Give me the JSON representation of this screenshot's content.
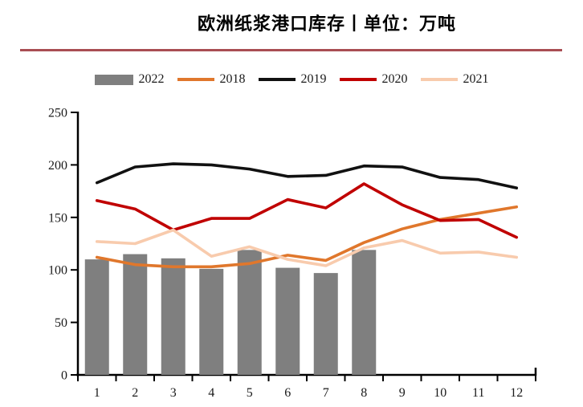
{
  "header": {
    "title": "欧洲纸浆港口库存丨单位：万吨"
  },
  "colors": {
    "separator": "#A94E53",
    "axis": "#000000",
    "tick_text": "#1a1a1a",
    "bar_2022": "#7f7f7f",
    "line_2018": "#E0772C",
    "line_2019": "#111111",
    "line_2020": "#C00000",
    "line_2021": "#F8CBAD"
  },
  "chart_data": {
    "type": "bar",
    "combo": true,
    "title": "欧洲纸浆港口库存丨单位：万吨",
    "xlabel": "",
    "ylabel": "",
    "categories": [
      "1",
      "2",
      "3",
      "4",
      "5",
      "6",
      "7",
      "8",
      "9",
      "10",
      "11",
      "12"
    ],
    "ylim": [
      0,
      250
    ],
    "yticks": [
      0,
      50,
      100,
      150,
      200,
      250
    ],
    "grid": false,
    "legend_position": "top",
    "series": [
      {
        "name": "2022",
        "type": "bar",
        "color": "#7f7f7f",
        "values": [
          110,
          115,
          111,
          101,
          119,
          102,
          97,
          119,
          null,
          null,
          null,
          null
        ]
      },
      {
        "name": "2018",
        "type": "line",
        "color": "#E0772C",
        "values": [
          112,
          105,
          103,
          103,
          106,
          114,
          109,
          126,
          139,
          148,
          154,
          160
        ]
      },
      {
        "name": "2019",
        "type": "line",
        "color": "#111111",
        "values": [
          183,
          198,
          201,
          200,
          196,
          189,
          190,
          199,
          198,
          188,
          186,
          178
        ]
      },
      {
        "name": "2020",
        "type": "line",
        "color": "#C00000",
        "values": [
          166,
          158,
          138,
          149,
          149,
          167,
          159,
          182,
          162,
          147,
          148,
          131
        ]
      },
      {
        "name": "2021",
        "type": "line",
        "color": "#F8CBAD",
        "values": [
          127,
          125,
          138,
          113,
          122,
          110,
          104,
          121,
          128,
          116,
          117,
          112
        ]
      }
    ]
  }
}
